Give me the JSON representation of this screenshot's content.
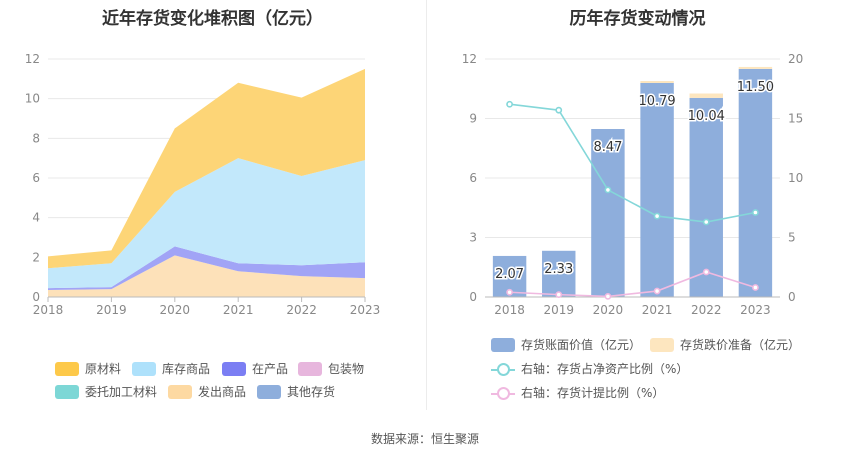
{
  "left": {
    "title": "近年存货变化堆积图（亿元）",
    "legend": [
      {
        "label": "原材料",
        "color": "#fdc94a"
      },
      {
        "label": "库存商品",
        "color": "#aee1fb"
      },
      {
        "label": "在产品",
        "color": "#7b7ef3"
      },
      {
        "label": "包装物",
        "color": "#e7b6dd"
      },
      {
        "label": "委托加工材料",
        "color": "#7dd7d6"
      },
      {
        "label": "发出商品",
        "color": "#fdd9a2"
      },
      {
        "label": "其他存货",
        "color": "#8eaedc"
      }
    ]
  },
  "right": {
    "title": "历年存货变动情况",
    "legend": [
      {
        "label": "存货账面价值（亿元）",
        "color": "#8eaedc"
      },
      {
        "label": "存货跌价准备（亿元）",
        "color": "#fde6bf"
      },
      {
        "label": "右轴：存货占净资产比例（%）",
        "color": "#84d7d9"
      },
      {
        "label": "右轴：存货计提比例（%）",
        "color": "#f0b9e0"
      }
    ]
  },
  "source": "数据来源：恒生聚源",
  "chart_data": [
    {
      "type": "area",
      "title": "近年存货变化堆积图（亿元）",
      "stacked": true,
      "x": [
        "2018",
        "2019",
        "2020",
        "2021",
        "2022",
        "2023"
      ],
      "ylim": [
        0,
        12
      ],
      "yticks": [
        0,
        2,
        4,
        6,
        8,
        10,
        12
      ],
      "grid": true,
      "legend_position": "bottom",
      "series": [
        {
          "name": "发出商品",
          "color": "#fde1b9",
          "values": [
            0.35,
            0.4,
            2.1,
            1.3,
            1.05,
            0.95
          ]
        },
        {
          "name": "在产品",
          "color": "#a1a4f6",
          "values": [
            0.1,
            0.1,
            0.45,
            0.4,
            0.55,
            0.8
          ]
        },
        {
          "name": "库存商品",
          "color": "#c2e8fb",
          "values": [
            1.0,
            1.2,
            2.75,
            5.3,
            4.5,
            5.15
          ]
        },
        {
          "name": "原材料",
          "color": "#fdd577",
          "values": [
            0.6,
            0.65,
            3.2,
            3.8,
            3.95,
            4.6
          ]
        }
      ]
    },
    {
      "type": "bar",
      "title": "历年存货变动情况",
      "categories": [
        "2018",
        "2019",
        "2020",
        "2021",
        "2022",
        "2023"
      ],
      "ylim": [
        0,
        12
      ],
      "yticks": [
        0,
        3,
        6,
        9,
        12
      ],
      "y2lim": [
        0,
        20
      ],
      "y2ticks": [
        0,
        5,
        10,
        15,
        20
      ],
      "grid": true,
      "legend_position": "bottom",
      "series": [
        {
          "name": "存货账面价值（亿元）",
          "type": "bar",
          "axis": "left",
          "color": "#8eaedc",
          "values": [
            2.07,
            2.33,
            8.47,
            10.79,
            10.04,
            11.5
          ]
        },
        {
          "name": "存货跌价准备（亿元）",
          "type": "bar",
          "axis": "left",
          "color": "#fde6bf",
          "values": [
            0.0,
            0.0,
            0.0,
            0.1,
            0.22,
            0.1
          ]
        },
        {
          "name": "右轴：存货占净资产比例（%）",
          "type": "line",
          "axis": "right",
          "color": "#84d7d9",
          "values": [
            16.2,
            15.7,
            9.0,
            6.8,
            6.3,
            7.1
          ]
        },
        {
          "name": "右轴：存货计提比例（%）",
          "type": "line",
          "axis": "right",
          "color": "#f0b9e0",
          "values": [
            0.4,
            0.2,
            0.05,
            0.5,
            2.1,
            0.8
          ]
        }
      ],
      "data_labels": [
        "2.07",
        "2.33",
        "8.47",
        "10.79",
        "10.04",
        "11.50"
      ]
    }
  ]
}
